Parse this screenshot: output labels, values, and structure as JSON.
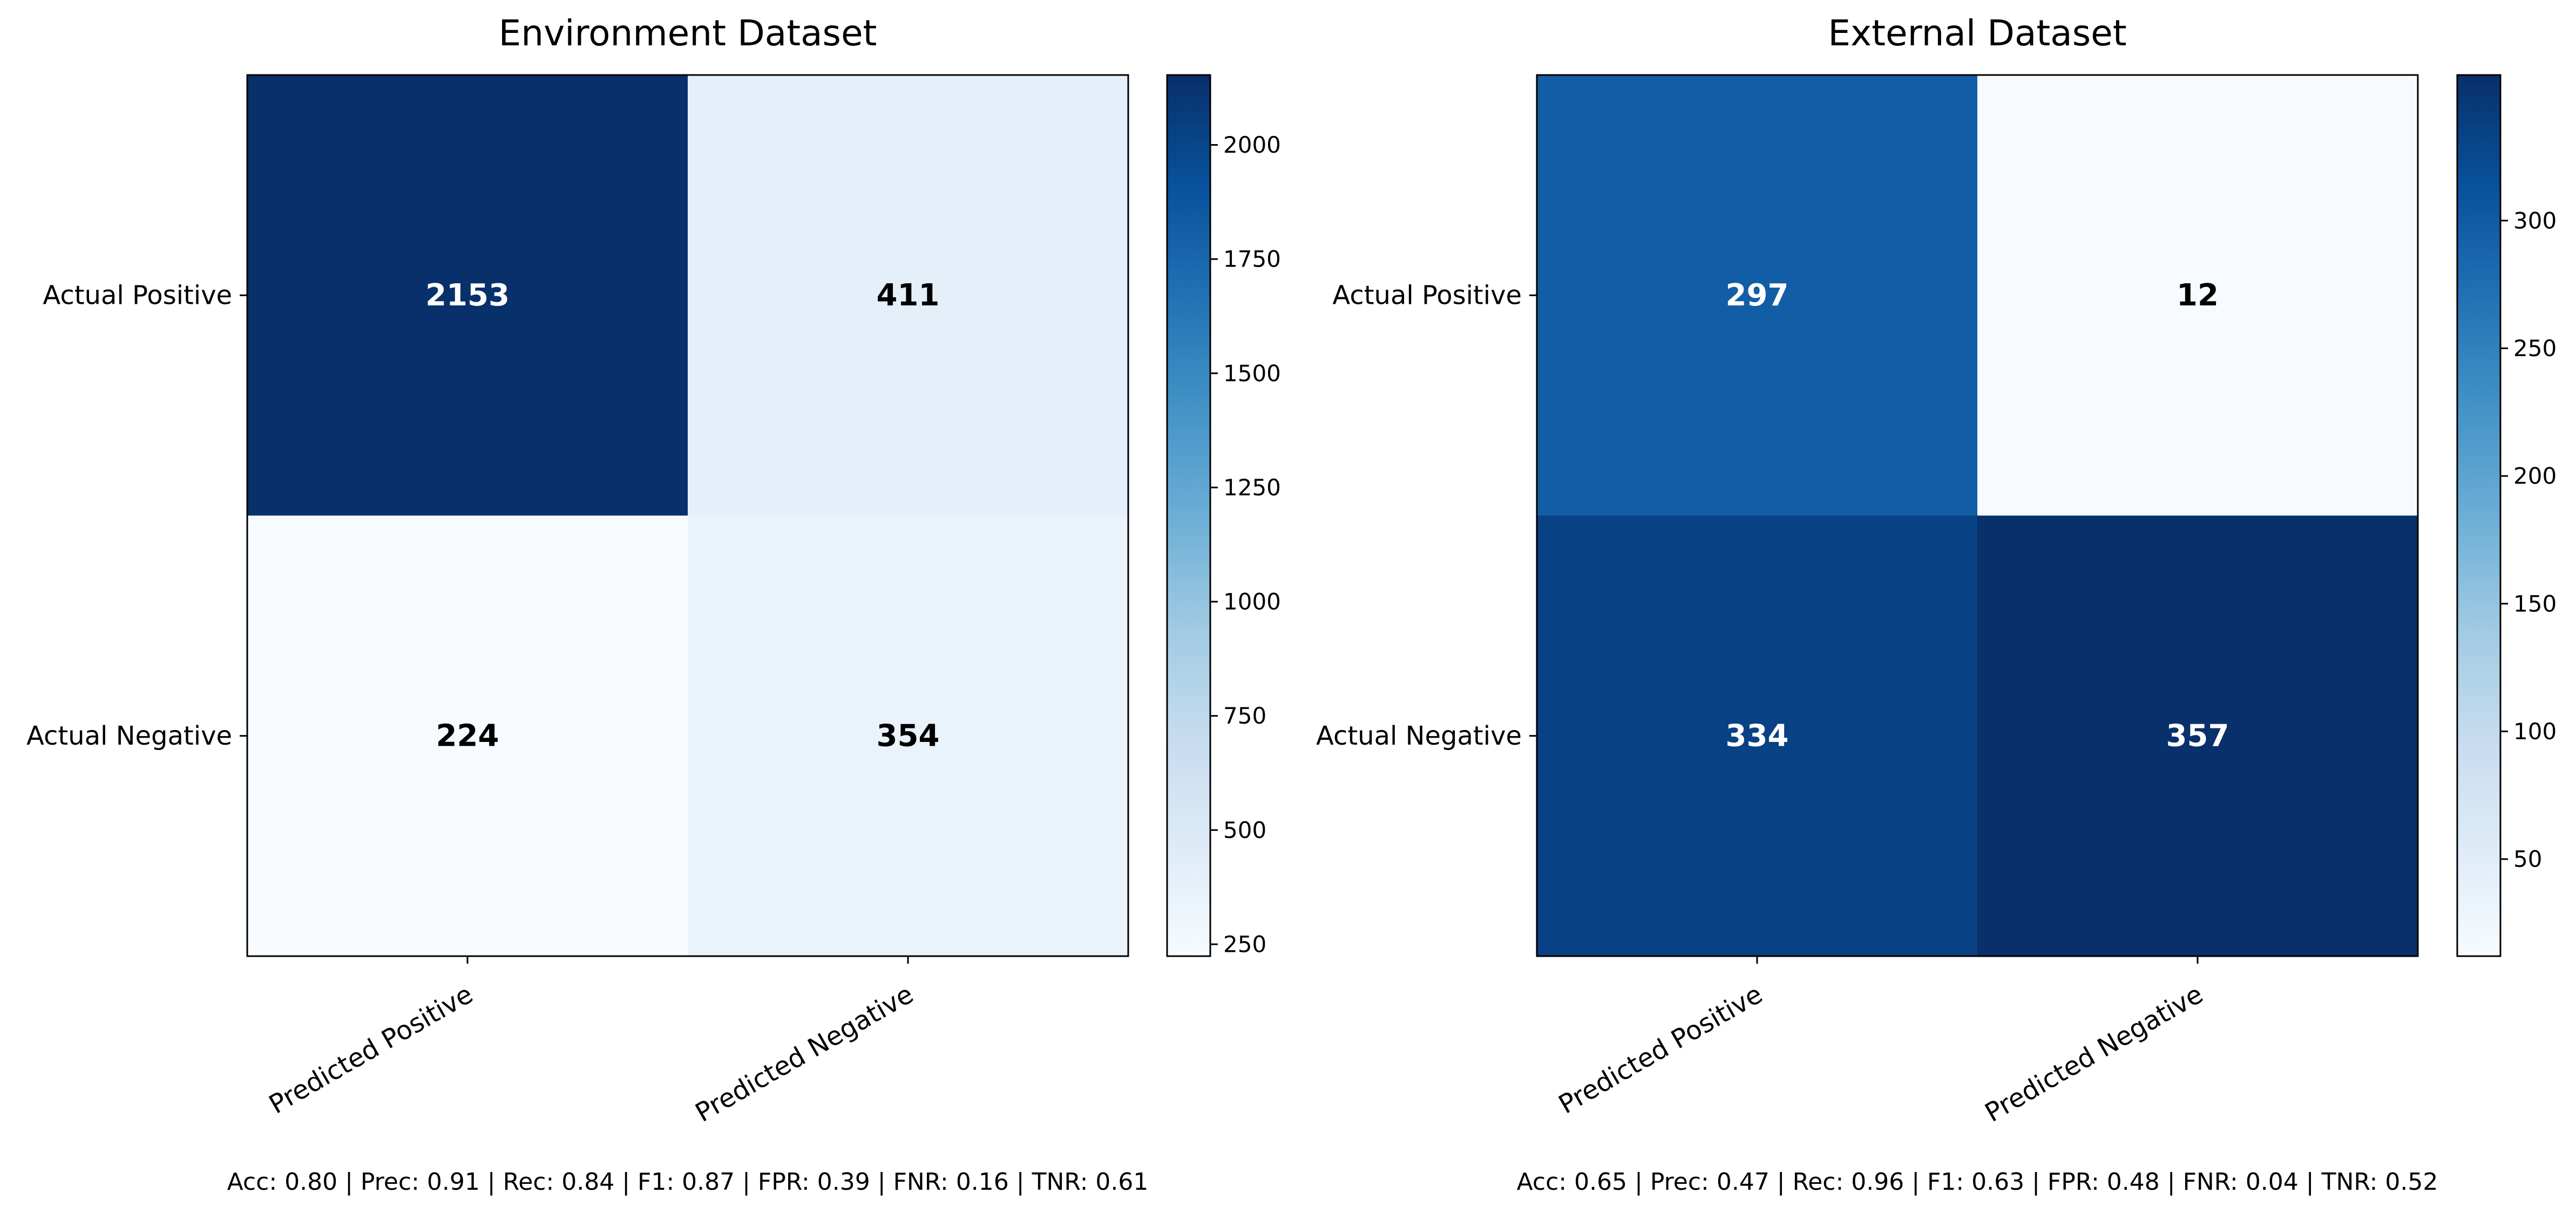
{
  "chart_data": [
    {
      "type": "heatmap",
      "title": "Environment Dataset",
      "row_labels": [
        "Actual Positive",
        "Actual Negative"
      ],
      "col_labels": [
        "Predicted Positive",
        "Predicted Negative"
      ],
      "values": [
        [
          2153,
          411
        ],
        [
          224,
          354
        ]
      ],
      "colormap": "Blues",
      "colorbar": {
        "range": [
          224,
          2153
        ],
        "ticks": [
          250,
          500,
          750,
          1000,
          1250,
          1500,
          1750,
          2000
        ]
      },
      "grid": false,
      "metrics_text": "Acc: 0.80 | Prec: 0.91 | Rec: 0.84 | F1: 0.87 | FPR: 0.39 | FNR: 0.16 | TNR: 0.61"
    },
    {
      "type": "heatmap",
      "title": "External Dataset",
      "row_labels": [
        "Actual Positive",
        "Actual Negative"
      ],
      "col_labels": [
        "Predicted Positive",
        "Predicted Negative"
      ],
      "values": [
        [
          297,
          12
        ],
        [
          334,
          357
        ]
      ],
      "colormap": "Blues",
      "colorbar": {
        "range": [
          12,
          357
        ],
        "ticks": [
          50,
          100,
          150,
          200,
          250,
          300
        ]
      },
      "grid": false,
      "metrics_text": "Acc: 0.65 | Prec: 0.47 | Rec: 0.96 | F1: 0.63 | FPR: 0.48 | FNR: 0.04 | TNR: 0.52"
    }
  ]
}
